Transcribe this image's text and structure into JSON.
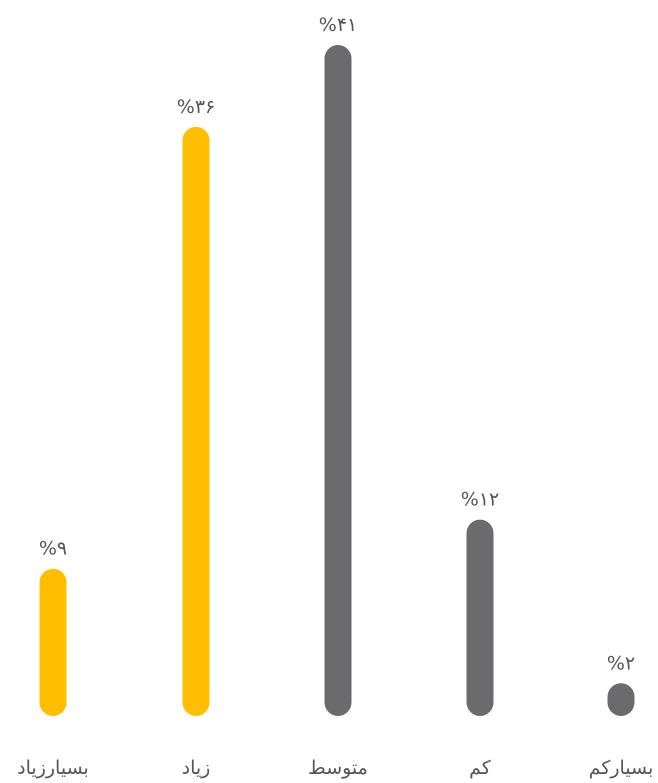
{
  "chart_data": {
    "type": "bar",
    "categories": [
      "بسیارزیاد",
      "زیاد",
      "متوسط",
      "کم",
      "بسیارکم"
    ],
    "values": [
      9,
      36,
      41,
      12,
      2
    ],
    "value_labels": [
      "%۹",
      "%۳۶",
      "%۴۱",
      "%۱۲",
      "%۲"
    ],
    "colors": [
      "#FFBE00",
      "#FFBE00",
      "#6B6B6E",
      "#6B6B6E",
      "#6B6B6E"
    ],
    "ylim": [
      0,
      41
    ],
    "grid": false,
    "legend": "none"
  }
}
